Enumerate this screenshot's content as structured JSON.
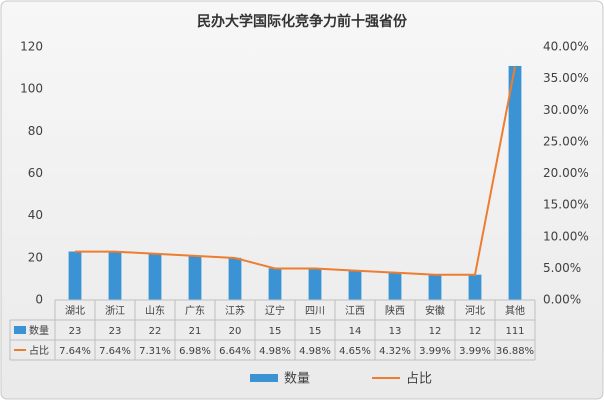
{
  "chart_data": {
    "type": "bar",
    "title": "民办大学国际化竞争力前十强省份",
    "categories": [
      "湖北",
      "浙江",
      "山东",
      "广东",
      "江苏",
      "辽宁",
      "四川",
      "江西",
      "陕西",
      "安徽",
      "河北",
      "其他"
    ],
    "series": [
      {
        "name": "数量",
        "type": "bar",
        "color": "#3b93d4",
        "values": [
          23,
          23,
          22,
          21,
          20,
          15,
          15,
          14,
          13,
          12,
          12,
          111
        ]
      },
      {
        "name": "占比",
        "type": "line",
        "axis": "y2",
        "color": "#ed7d31",
        "values": [
          7.64,
          7.64,
          7.31,
          6.98,
          6.64,
          4.98,
          4.98,
          4.65,
          4.32,
          3.99,
          3.99,
          36.88
        ],
        "value_labels": [
          "7.64%",
          "7.64%",
          "7.31%",
          "6.98%",
          "6.64%",
          "4.98%",
          "4.98%",
          "4.65%",
          "4.32%",
          "3.99%",
          "3.99%",
          "36.88%"
        ]
      }
    ],
    "ylim": [
      0,
      120
    ],
    "yticks": [
      0,
      20,
      40,
      60,
      80,
      100,
      120
    ],
    "y2lim": [
      0,
      40
    ],
    "y2ticks": [
      {
        "value": 0,
        "label": "0.00%"
      },
      {
        "value": 5,
        "label": "5.00%"
      },
      {
        "value": 10,
        "label": "10.00%"
      },
      {
        "value": 15,
        "label": "15.00%"
      },
      {
        "value": 20,
        "label": "20.00%"
      },
      {
        "value": 25,
        "label": "25.00%"
      },
      {
        "value": 30,
        "label": "30.00%"
      },
      {
        "value": 35,
        "label": "35.00%"
      },
      {
        "value": 40,
        "label": "40.00%"
      }
    ],
    "grid": false,
    "data_table": true,
    "legend": "bottom"
  }
}
